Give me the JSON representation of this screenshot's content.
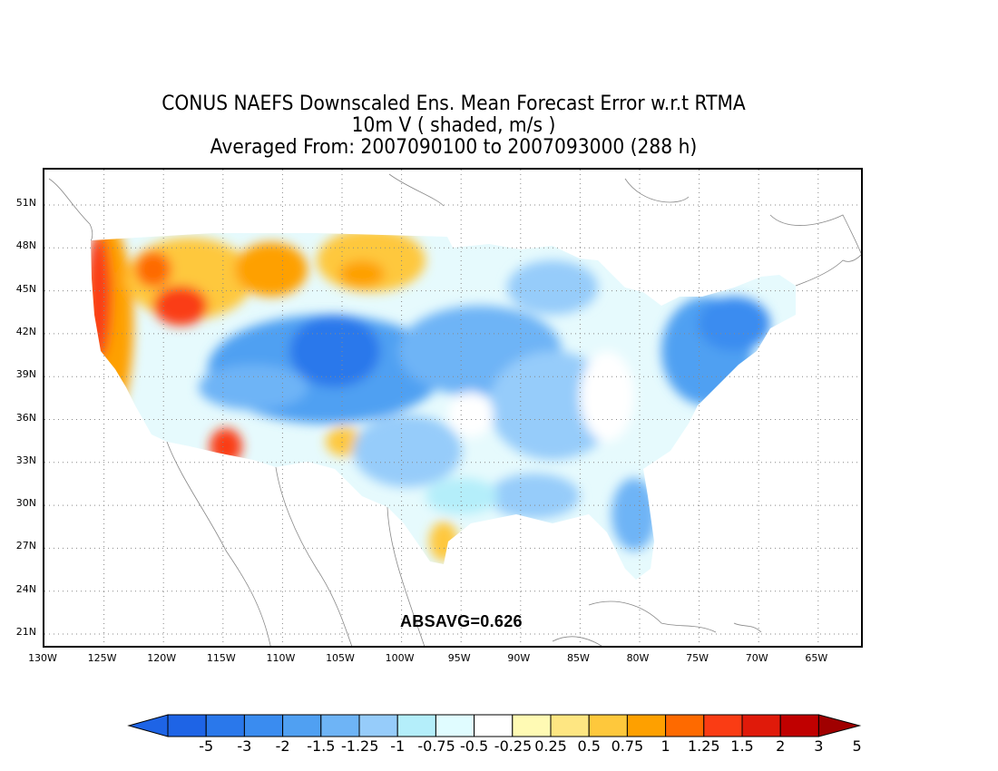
{
  "titles": {
    "line1": "CONUS NAEFS Downscaled Ens. Mean Forecast Error w.r.t RTMA",
    "line2": "10m V ( shaded, m/s )",
    "line3": "Averaged From: 2007090100 to 2007093000 (288 h)"
  },
  "absavg": "ABSAVG=0.626",
  "lat_labels": [
    "51N",
    "48N",
    "45N",
    "42N",
    "39N",
    "36N",
    "33N",
    "30N",
    "27N",
    "24N",
    "21N"
  ],
  "lon_labels": [
    "130W",
    "125W",
    "120W",
    "115W",
    "110W",
    "105W",
    "100W",
    "95W",
    "90W",
    "85W",
    "80W",
    "75W",
    "70W",
    "65W"
  ],
  "colorbar": {
    "labels": [
      "-5",
      "-3",
      "-2",
      "-1.5",
      "-1.25",
      "-1",
      "-0.75",
      "-0.5",
      "-0.25",
      "0.25",
      "0.5",
      "0.75",
      "1",
      "1.25",
      "1.5",
      "2",
      "3",
      "5"
    ],
    "colors": [
      "#1e64e6",
      "#2a78eb",
      "#3a8cf0",
      "#50a0f2",
      "#6eb4f6",
      "#96ccfa",
      "#b4eefa",
      "#e0fcff",
      "#ffffff",
      "#fffab4",
      "#fee682",
      "#fec83c",
      "#fea000",
      "#fe6a00",
      "#fa3c14",
      "#e01a0a",
      "#c00000",
      "#a00000"
    ]
  },
  "map_data": {
    "field": "10m V forecast error (m/s)",
    "lat_range": [
      20,
      53
    ],
    "lon_range": [
      -130,
      -62
    ],
    "absavg": 0.626
  }
}
